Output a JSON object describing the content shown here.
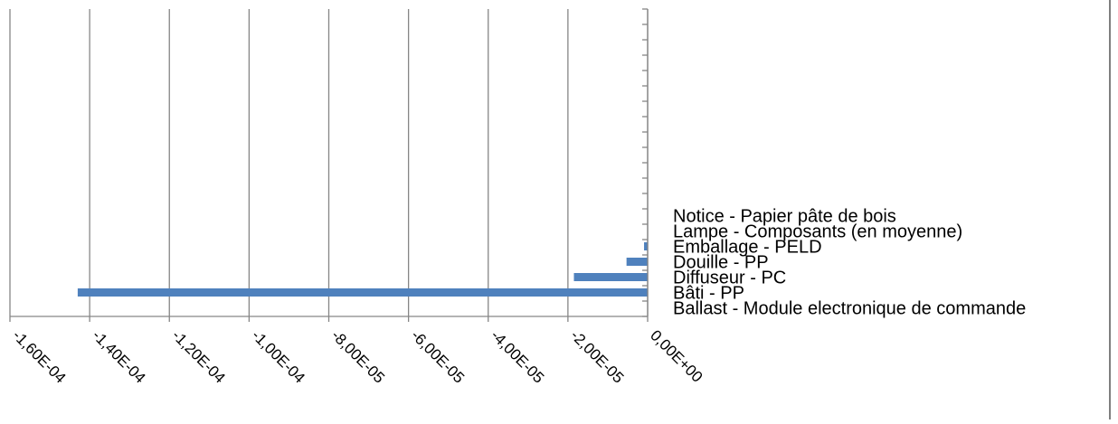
{
  "chart_data": {
    "type": "bar",
    "orientation": "horizontal",
    "categories": [
      "Ballast - Module electronique de commande",
      "Bâti - PP",
      "Diffuseur - PC",
      "Douille - PP",
      "Emballage - PELD",
      "Lampe - Composants (en moyenne)",
      "Notice - Papier pâte de bois"
    ],
    "values": [
      0,
      -0.000143,
      -1.85e-05,
      -5.3e-06,
      -9e-07,
      0,
      0
    ],
    "x_ticks": [
      "-1,60E-04",
      "-1,40E-04",
      "-1,20E-04",
      "-1,00E-04",
      "-8,00E-05",
      "-6,00E-05",
      "-4,00E-05",
      "-2,00E-05",
      "0,00E+00"
    ],
    "xlim": [
      -0.00016,
      0
    ],
    "grid": true,
    "legend": "none",
    "bar_color": "#4f81bd",
    "grid_color": "#868686",
    "title": "",
    "xlabel": "",
    "ylabel": ""
  }
}
